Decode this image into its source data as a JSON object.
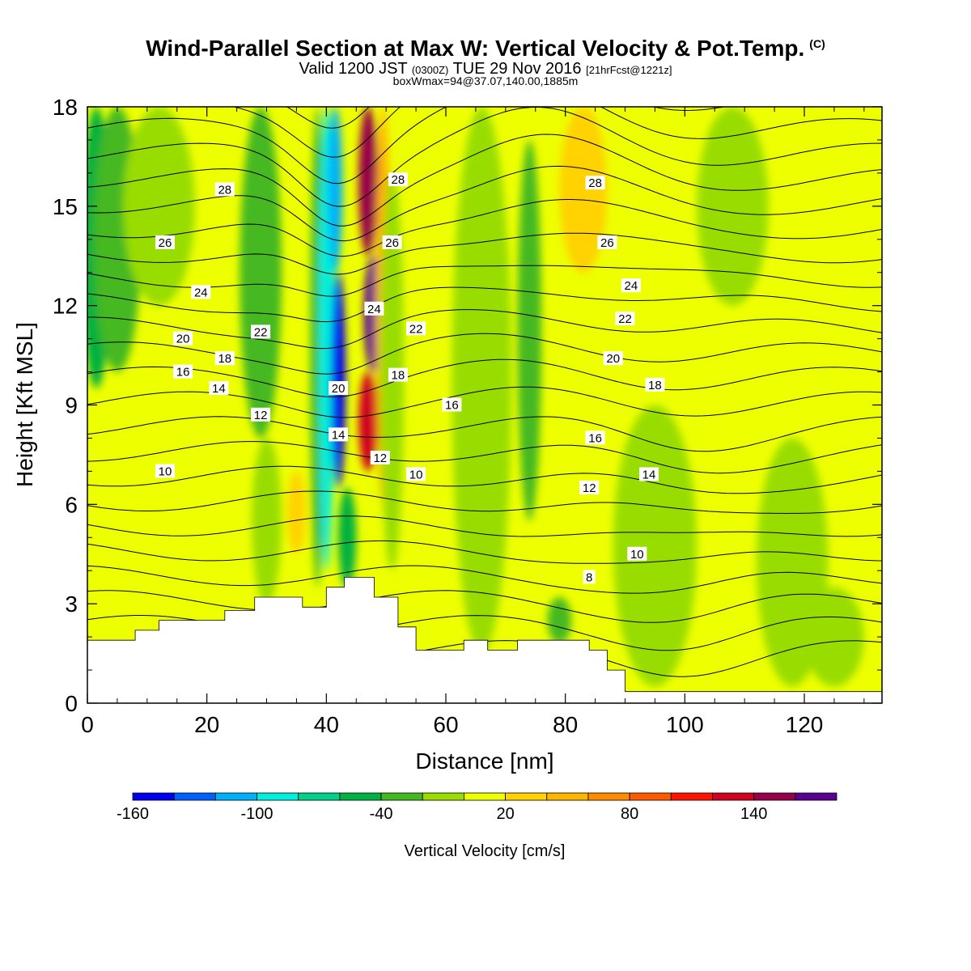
{
  "title": {
    "main": "Wind-Parallel Section at Max W: Vertical Velocity & Pot.Temp.",
    "copyright": "(C)",
    "valid_prefix": "Valid 1200 JST",
    "valid_z": "(0300Z)",
    "valid_date": "TUE 29 Nov 2016",
    "valid_fcst": "[21hrFcst@1221z]",
    "boxwmax": "boxWmax=94@37.07,140.00,1885m"
  },
  "chart_data": {
    "type": "heatmap",
    "xlabel": "Distance [nm]",
    "ylabel": "Height [Kft MSL]",
    "xlim": [
      0,
      133
    ],
    "ylim": [
      0,
      18
    ],
    "x_ticks": [
      0,
      20,
      40,
      60,
      80,
      100,
      120
    ],
    "y_ticks": [
      0,
      3,
      6,
      9,
      12,
      15,
      18
    ],
    "colorbar": {
      "label": "Vertical Velocity [cm/s]",
      "tick_labels": [
        "-160",
        "-100",
        "-40",
        "20",
        "80",
        "140"
      ],
      "tick_values": [
        -160,
        -100,
        -40,
        20,
        80,
        140
      ],
      "levels": [
        -160,
        -140,
        -120,
        -100,
        -80,
        -60,
        -40,
        -20,
        0,
        20,
        40,
        60,
        80,
        100,
        120,
        140,
        160,
        180
      ],
      "colors": [
        "#0000ee",
        "#0060ff",
        "#00b0f8",
        "#00eedd",
        "#00d08a",
        "#00b040",
        "#44b820",
        "#99dd00",
        "#eeff00",
        "#ffd200",
        "#ffb400",
        "#ff8c00",
        "#ff5a00",
        "#ff1400",
        "#d00020",
        "#960048",
        "#5a0090"
      ]
    },
    "background_w": 0,
    "w_features": [
      {
        "x": 1.5,
        "y0": 9.5,
        "y1": 18,
        "w": 2.5,
        "v": -45
      },
      {
        "x": 5,
        "y0": 10,
        "y1": 18,
        "w": 4,
        "v": -25
      },
      {
        "x": 12,
        "y0": 12,
        "y1": 18,
        "w": 6,
        "v": -10
      },
      {
        "x": 29,
        "y0": 8,
        "y1": 18,
        "w": 3.5,
        "v": -30
      },
      {
        "x": 30,
        "y0": 3,
        "y1": 8,
        "w": 2.5,
        "v": -15
      },
      {
        "x": 35,
        "y0": 4.5,
        "y1": 7,
        "w": 1.5,
        "v": 35
      },
      {
        "x": 38.5,
        "y0": 3.5,
        "y1": 18,
        "w": 1.2,
        "v": -40
      },
      {
        "x": 40,
        "y0": 4,
        "y1": 18,
        "w": 1.3,
        "v": -85
      },
      {
        "x": 42,
        "y0": 6.5,
        "y1": 13,
        "w": 1.2,
        "v": -170
      },
      {
        "x": 41.5,
        "y0": 13,
        "y1": 18,
        "w": 1.2,
        "v": -110
      },
      {
        "x": 43.5,
        "y0": 3.5,
        "y1": 6.5,
        "w": 1.5,
        "v": -55
      },
      {
        "x": 47,
        "y0": 7,
        "y1": 10,
        "w": 1.6,
        "v": 120
      },
      {
        "x": 47.8,
        "y0": 10,
        "y1": 13.5,
        "w": 1.5,
        "v": 175
      },
      {
        "x": 47,
        "y0": 13.5,
        "y1": 18,
        "w": 1.6,
        "v": 150
      },
      {
        "x": 49.5,
        "y0": 6,
        "y1": 18,
        "w": 1.3,
        "v": 45
      },
      {
        "x": 51,
        "y0": 4,
        "y1": 16,
        "w": 2,
        "v": -15
      },
      {
        "x": 62.5,
        "y0": 8,
        "y1": 11,
        "w": 1.5,
        "v": -30
      },
      {
        "x": 66,
        "y0": 1.5,
        "y1": 18,
        "w": 5,
        "v": -15
      },
      {
        "x": 74,
        "y0": 5.5,
        "y1": 17,
        "w": 2,
        "v": -35
      },
      {
        "x": 79,
        "y0": 1.8,
        "y1": 3.2,
        "w": 2,
        "v": -30
      },
      {
        "x": 83,
        "y0": 13,
        "y1": 18,
        "w": 4,
        "v": 35
      },
      {
        "x": 93,
        "y0": 4.5,
        "y1": 6.5,
        "w": 3,
        "v": -30
      },
      {
        "x": 95,
        "y0": 0.5,
        "y1": 9,
        "w": 7,
        "v": -12
      },
      {
        "x": 108,
        "y0": 12,
        "y1": 18,
        "w": 6,
        "v": -10
      },
      {
        "x": 118,
        "y0": 0.5,
        "y1": 8,
        "w": 6,
        "v": -10
      },
      {
        "x": 125,
        "y0": 0.5,
        "y1": 3.5,
        "w": 5,
        "v": -10
      }
    ],
    "terrain": [
      [
        0,
        1.9
      ],
      [
        8,
        1.9
      ],
      [
        8,
        2.2
      ],
      [
        12,
        2.2
      ],
      [
        12,
        2.5
      ],
      [
        23,
        2.5
      ],
      [
        23,
        2.8
      ],
      [
        28,
        2.8
      ],
      [
        28,
        3.2
      ],
      [
        36,
        3.2
      ],
      [
        36,
        2.9
      ],
      [
        40,
        2.9
      ],
      [
        40,
        3.5
      ],
      [
        43,
        3.5
      ],
      [
        43,
        3.8
      ],
      [
        48,
        3.8
      ],
      [
        48,
        3.2
      ],
      [
        52,
        3.2
      ],
      [
        52,
        2.3
      ],
      [
        55,
        2.3
      ],
      [
        55,
        1.6
      ],
      [
        63,
        1.6
      ],
      [
        63,
        1.9
      ],
      [
        67,
        1.9
      ],
      [
        67,
        1.6
      ],
      [
        72,
        1.6
      ],
      [
        72,
        1.9
      ],
      [
        84,
        1.9
      ],
      [
        84,
        1.6
      ],
      [
        87,
        1.6
      ],
      [
        87,
        1.0
      ],
      [
        90,
        1.0
      ],
      [
        90,
        0.35
      ],
      [
        133,
        0.35
      ]
    ],
    "theta_labels": [
      {
        "text": "28",
        "x": 23,
        "y": 15.5
      },
      {
        "text": "26",
        "x": 13,
        "y": 13.9
      },
      {
        "text": "24",
        "x": 19,
        "y": 12.4
      },
      {
        "text": "22",
        "x": 29,
        "y": 11.2
      },
      {
        "text": "20",
        "x": 16,
        "y": 11.0
      },
      {
        "text": "18",
        "x": 23,
        "y": 10.4
      },
      {
        "text": "16",
        "x": 16,
        "y": 10.0
      },
      {
        "text": "14",
        "x": 22,
        "y": 9.5
      },
      {
        "text": "12",
        "x": 29,
        "y": 8.7
      },
      {
        "text": "10",
        "x": 13,
        "y": 7.0
      },
      {
        "text": "28",
        "x": 52,
        "y": 15.8
      },
      {
        "text": "26",
        "x": 51,
        "y": 13.9
      },
      {
        "text": "24",
        "x": 48,
        "y": 11.9
      },
      {
        "text": "22",
        "x": 55,
        "y": 11.3
      },
      {
        "text": "20",
        "x": 42,
        "y": 9.5
      },
      {
        "text": "18",
        "x": 52,
        "y": 9.9
      },
      {
        "text": "16",
        "x": 61,
        "y": 9.0
      },
      {
        "text": "14",
        "x": 42,
        "y": 8.1
      },
      {
        "text": "12",
        "x": 49,
        "y": 7.4
      },
      {
        "text": "10",
        "x": 55,
        "y": 6.9
      },
      {
        "text": "28",
        "x": 85,
        "y": 15.7
      },
      {
        "text": "26",
        "x": 87,
        "y": 13.9
      },
      {
        "text": "24",
        "x": 91,
        "y": 12.6
      },
      {
        "text": "22",
        "x": 90,
        "y": 11.6
      },
      {
        "text": "20",
        "x": 88,
        "y": 10.4
      },
      {
        "text": "18",
        "x": 95,
        "y": 9.6
      },
      {
        "text": "16",
        "x": 85,
        "y": 8.0
      },
      {
        "text": "14",
        "x": 94,
        "y": 6.9
      },
      {
        "text": "12",
        "x": 84,
        "y": 6.5
      },
      {
        "text": "10",
        "x": 92,
        "y": 4.5
      },
      {
        "text": "8",
        "x": 84,
        "y": 3.8
      }
    ]
  }
}
